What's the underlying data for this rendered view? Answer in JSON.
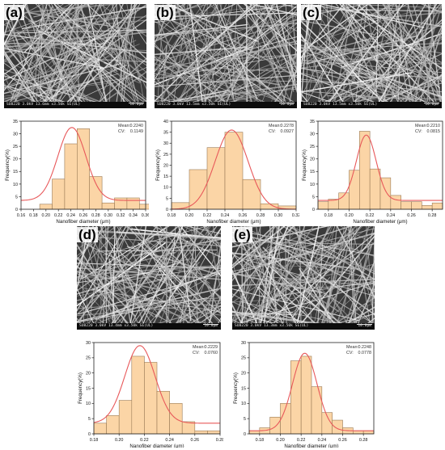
{
  "panels": [
    {
      "label": "(a)",
      "sem_bar": "SU8220 3.0kV 13.6mm x3.50k SE(UL)",
      "sem_scale": "10.0μm",
      "chart_data": {
        "type": "bar",
        "xlabel": "Nanofiber diameter (μm)",
        "ylabel": "Frequency(%)",
        "xlim": [
          0.16,
          0.36
        ],
        "ylim": [
          0,
          35
        ],
        "xticks": [
          "0.16",
          "0.18",
          "0.20",
          "0.22",
          "0.24",
          "0.26",
          "0.28",
          "0.30",
          "0.32",
          "0.34",
          "0.36"
        ],
        "yticks": [
          "0",
          "5",
          "10",
          "15",
          "20",
          "25",
          "30",
          "35"
        ],
        "bins": [
          [
            0.19,
            0.21,
            2
          ],
          [
            0.21,
            0.23,
            12
          ],
          [
            0.23,
            0.25,
            26
          ],
          [
            0.25,
            0.27,
            32
          ],
          [
            0.27,
            0.29,
            13
          ],
          [
            0.29,
            0.31,
            2.5
          ],
          [
            0.31,
            0.33,
            4.5
          ],
          [
            0.33,
            0.35,
            4.5
          ],
          [
            0.35,
            0.37,
            2
          ]
        ],
        "fit": {
          "type": "normal",
          "mean": 0.2416,
          "sd": 0.0225,
          "peak": 32.5,
          "baseline": 3.5
        },
        "stats": [
          {
            "name": "Mean:",
            "value": "0.2240"
          },
          {
            "name": "CV:",
            "value": "0.1149"
          }
        ]
      }
    },
    {
      "label": "(b)",
      "sem_bar": "SU8220 3.0kV 13.5mm x3.50k SE(UL)",
      "sem_scale": "10.0μm",
      "chart_data": {
        "type": "bar",
        "xlabel": "Nanofiber diameter (μm)",
        "ylabel": "Frequency(%)",
        "xlim": [
          0.18,
          0.32
        ],
        "ylim": [
          0,
          40
        ],
        "xticks": [
          "0.18",
          "0.20",
          "0.22",
          "0.24",
          "0.26",
          "0.28",
          "0.30",
          "0.32"
        ],
        "yticks": [
          "0",
          "5",
          "10",
          "15",
          "20",
          "25",
          "30",
          "35",
          "40"
        ],
        "bins": [
          [
            0.18,
            0.2,
            3
          ],
          [
            0.2,
            0.22,
            18
          ],
          [
            0.22,
            0.24,
            28
          ],
          [
            0.24,
            0.26,
            35
          ],
          [
            0.26,
            0.28,
            13.5
          ],
          [
            0.28,
            0.3,
            2.5
          ],
          [
            0.3,
            0.32,
            1.5
          ]
        ],
        "fit": {
          "type": "normal",
          "mean": 0.2475,
          "sd": 0.0185,
          "peak": 36,
          "baseline": 0
        },
        "stats": [
          {
            "name": "Mean:",
            "value": "0.2278"
          },
          {
            "name": "CV:",
            "value": "0.0927"
          }
        ]
      }
    },
    {
      "label": "(c)",
      "sem_bar": "SU8220 3.0kV 13.5mm x3.50k SE(UL)",
      "sem_scale": "10.0μm",
      "chart_data": {
        "type": "bar",
        "xlabel": "Nanofiber diameter (μm)",
        "ylabel": "Frequency(%)",
        "xlim": [
          0.17,
          0.29
        ],
        "ylim": [
          0,
          35
        ],
        "xticks": [
          "0.18",
          "0.20",
          "0.22",
          "0.24",
          "0.26",
          "0.28"
        ],
        "yticks": [
          "0",
          "5",
          "10",
          "15",
          "20",
          "25",
          "30",
          "35"
        ],
        "bins": [
          [
            0.17,
            0.18,
            3
          ],
          [
            0.18,
            0.19,
            4
          ],
          [
            0.19,
            0.2,
            6.5
          ],
          [
            0.2,
            0.21,
            15.5
          ],
          [
            0.21,
            0.22,
            31
          ],
          [
            0.22,
            0.23,
            16
          ],
          [
            0.23,
            0.24,
            12.5
          ],
          [
            0.24,
            0.25,
            5.5
          ],
          [
            0.25,
            0.26,
            3
          ],
          [
            0.26,
            0.27,
            3
          ],
          [
            0.27,
            0.28,
            1.5
          ],
          [
            0.28,
            0.29,
            2.5
          ]
        ],
        "fit": {
          "type": "normal",
          "mean": 0.2165,
          "sd": 0.0095,
          "peak": 29.5,
          "baseline": 3.5
        },
        "stats": [
          {
            "name": "Mean:",
            "value": "0.2210"
          },
          {
            "name": "CV:",
            "value": "0.0815"
          }
        ]
      }
    },
    {
      "label": "(d)",
      "sem_bar": "SU8220 3.0kV 13.4mm x3.50k SE(UL)",
      "sem_scale": "10.0μm",
      "chart_data": {
        "type": "bar",
        "xlabel": "Nanofiber diameter (μm)",
        "ylabel": "Frequency(%)",
        "xlim": [
          0.18,
          0.28
        ],
        "ylim": [
          0,
          30
        ],
        "xticks": [
          "0.18",
          "0.20",
          "0.22",
          "0.24",
          "0.26",
          "0.28"
        ],
        "yticks": [
          "0",
          "5",
          "10",
          "15",
          "20",
          "25",
          "30"
        ],
        "bins": [
          [
            0.18,
            0.19,
            3.5
          ],
          [
            0.19,
            0.2,
            6
          ],
          [
            0.2,
            0.21,
            11
          ],
          [
            0.21,
            0.22,
            25.5
          ],
          [
            0.22,
            0.23,
            23.5
          ],
          [
            0.23,
            0.24,
            14
          ],
          [
            0.24,
            0.25,
            10
          ],
          [
            0.25,
            0.26,
            4
          ],
          [
            0.26,
            0.27,
            1
          ],
          [
            0.27,
            0.28,
            1
          ]
        ],
        "fit": {
          "type": "normal",
          "mean": 0.2165,
          "sd": 0.012,
          "peak": 29,
          "baseline": 3.5
        },
        "stats": [
          {
            "name": "Mean:",
            "value": "0.2229"
          },
          {
            "name": "CV:",
            "value": "0.0760"
          }
        ]
      }
    },
    {
      "label": "(e)",
      "sem_bar": "SU8220 3.0kV 13.3mm x3.50k SE(UL)",
      "sem_scale": "10.0μm",
      "chart_data": {
        "type": "bar",
        "xlabel": "Nanofiber diameter (μm)",
        "ylabel": "Frequency(%)",
        "xlim": [
          0.17,
          0.29
        ],
        "ylim": [
          0,
          30
        ],
        "xticks": [
          "0.18",
          "0.20",
          "0.22",
          "0.24",
          "0.26",
          "0.28"
        ],
        "yticks": [
          "0",
          "5",
          "10",
          "15",
          "20",
          "25",
          "30"
        ],
        "bins": [
          [
            0.17,
            0.18,
            1
          ],
          [
            0.18,
            0.19,
            2
          ],
          [
            0.19,
            0.2,
            5.5
          ],
          [
            0.2,
            0.21,
            10
          ],
          [
            0.21,
            0.22,
            24
          ],
          [
            0.22,
            0.23,
            25.5
          ],
          [
            0.23,
            0.24,
            15.5
          ],
          [
            0.24,
            0.25,
            7
          ],
          [
            0.25,
            0.26,
            4.5
          ],
          [
            0.26,
            0.27,
            2
          ],
          [
            0.27,
            0.28,
            1
          ],
          [
            0.28,
            0.29,
            1
          ]
        ],
        "fit": {
          "type": "normal",
          "mean": 0.2235,
          "sd": 0.0118,
          "peak": 26.5,
          "baseline": 1
        },
        "stats": [
          {
            "name": "Mean:",
            "value": "0.2248"
          },
          {
            "name": "CV:",
            "value": "0.0778"
          }
        ]
      }
    }
  ],
  "colors": {
    "bar_fill": "#fbd5a6",
    "bar_stroke": "#9a7a55",
    "fit_line": "#e8585a",
    "axis": "#222222",
    "sem_bg": "#3a3a3a",
    "fiber": "#d9d9d9"
  }
}
